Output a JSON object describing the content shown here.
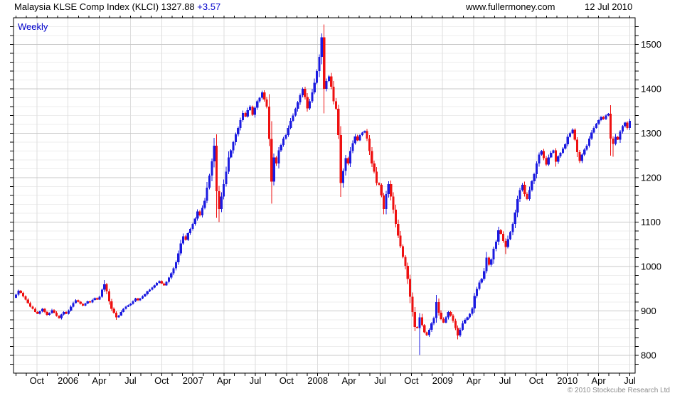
{
  "header": {
    "title": "Malaysia KLSE Comp Index (KLCI)",
    "last_price": "1327.88",
    "change": "+3.57",
    "website": "www.fullermoney.com",
    "date": "12 Jul 2010"
  },
  "footer": {
    "copyright": "© 2010 Stockcube Research Ltd"
  },
  "chart_data": {
    "type": "candlestick",
    "instrument": "Malaysia KLSE Comp Index (KLCI)",
    "frequency_label": "Weekly",
    "interval": "weekly",
    "start_week": "2005-08-01",
    "last_close": 1327.88,
    "ylim": [
      760,
      1560
    ],
    "y_ticks": [
      1500,
      1400,
      1300,
      1200,
      1100,
      1000,
      900,
      800
    ],
    "y_minor_step": 20,
    "months_total": 60,
    "x_labels": [
      {
        "label": "Oct",
        "month": 2
      },
      {
        "label": "2006",
        "month": 5
      },
      {
        "label": "Apr",
        "month": 8
      },
      {
        "label": "Jul",
        "month": 11
      },
      {
        "label": "Oct",
        "month": 14
      },
      {
        "label": "2007",
        "month": 17
      },
      {
        "label": "Apr",
        "month": 20
      },
      {
        "label": "Jul",
        "month": 23
      },
      {
        "label": "Oct",
        "month": 26
      },
      {
        "label": "2008",
        "month": 29
      },
      {
        "label": "Apr",
        "month": 32
      },
      {
        "label": "Jul",
        "month": 35
      },
      {
        "label": "Oct",
        "month": 38
      },
      {
        "label": "2009",
        "month": 41
      },
      {
        "label": "Apr",
        "month": 44
      },
      {
        "label": "Jul",
        "month": 47
      },
      {
        "label": "Oct",
        "month": 50
      },
      {
        "label": "2010",
        "month": 53
      },
      {
        "label": "Apr",
        "month": 56
      },
      {
        "label": "Jul",
        "month": 59
      }
    ],
    "first_open": 930,
    "closes": [
      937,
      946,
      941,
      933,
      926,
      918,
      910,
      905,
      898,
      894,
      899,
      905,
      898,
      891,
      895,
      902,
      896,
      889,
      884,
      892,
      898,
      894,
      901,
      910,
      918,
      924,
      921,
      916,
      912,
      917,
      922,
      919,
      925,
      929,
      926,
      932,
      948,
      960,
      944,
      922,
      905,
      896,
      886,
      890,
      898,
      905,
      910,
      913,
      916,
      922,
      928,
      924,
      928,
      933,
      938,
      944,
      948,
      953,
      958,
      963,
      967,
      962,
      958,
      966,
      975,
      985,
      996,
      1010,
      1030,
      1052,
      1068,
      1060,
      1075,
      1085,
      1096,
      1108,
      1124,
      1115,
      1132,
      1148,
      1178,
      1205,
      1237,
      1272,
      1170,
      1130,
      1158,
      1186,
      1214,
      1246,
      1262,
      1280,
      1298,
      1312,
      1330,
      1346,
      1338,
      1352,
      1360,
      1342,
      1358,
      1372,
      1380,
      1392,
      1376,
      1360,
      1287,
      1191,
      1246,
      1232,
      1262,
      1274,
      1288,
      1296,
      1312,
      1328,
      1340,
      1355,
      1370,
      1386,
      1400,
      1382,
      1356,
      1372,
      1392,
      1414,
      1440,
      1472,
      1516,
      1400,
      1418,
      1428,
      1405,
      1372,
      1355,
      1296,
      1188,
      1215,
      1244,
      1232,
      1260,
      1278,
      1293,
      1284,
      1296,
      1302,
      1305,
      1288,
      1260,
      1232,
      1214,
      1188,
      1184,
      1160,
      1130,
      1163,
      1186,
      1158,
      1128,
      1096,
      1070,
      1046,
      1022,
      1002,
      972,
      932,
      898,
      864,
      862,
      886,
      868,
      852,
      846,
      858,
      872,
      884,
      920,
      896,
      882,
      874,
      886,
      898,
      890,
      878,
      862,
      845,
      858,
      872,
      880,
      886,
      894,
      906,
      934,
      950,
      964,
      972,
      990,
      1020,
      1004,
      1016,
      1040,
      1056,
      1082,
      1074,
      1058,
      1044,
      1062,
      1078,
      1096,
      1122,
      1152,
      1172,
      1184,
      1163,
      1152,
      1172,
      1192,
      1208,
      1232,
      1252,
      1260,
      1244,
      1230,
      1246,
      1256,
      1262,
      1236,
      1248,
      1256,
      1266,
      1275,
      1292,
      1300,
      1308,
      1286,
      1258,
      1238,
      1252,
      1263,
      1272,
      1288,
      1302,
      1312,
      1322,
      1330,
      1337,
      1332,
      1340,
      1344,
      1288,
      1276,
      1292,
      1286,
      1304,
      1316,
      1324,
      1312,
      1327.88
    ],
    "wicks": {
      "37": {
        "high": 970
      },
      "42": {
        "low": 880
      },
      "83": {
        "high": 1290
      },
      "84": {
        "low": 1110
      },
      "85": {
        "low": 1100
      },
      "103": {
        "high": 1396
      },
      "107": {
        "low": 1142
      },
      "128": {
        "high": 1525
      },
      "129": {
        "low": 1345
      },
      "136": {
        "low": 1157
      },
      "169": {
        "low": 801
      },
      "176": {
        "high": 936
      },
      "185": {
        "low": 836
      },
      "205": {
        "low": 1028
      },
      "236": {
        "low": 1233
      },
      "249": {
        "low": 1250
      },
      "250": {
        "low": 1247
      }
    },
    "colors": {
      "up": "#1b1be0",
      "down": "#ee1111",
      "grid_minor": "#ededed",
      "grid_major": "#c8c8c8",
      "grid_vertical": "#dedede",
      "frame": "#000000",
      "accent_blue": "#0000cc",
      "copyright_gray": "#8c8c8c"
    }
  }
}
